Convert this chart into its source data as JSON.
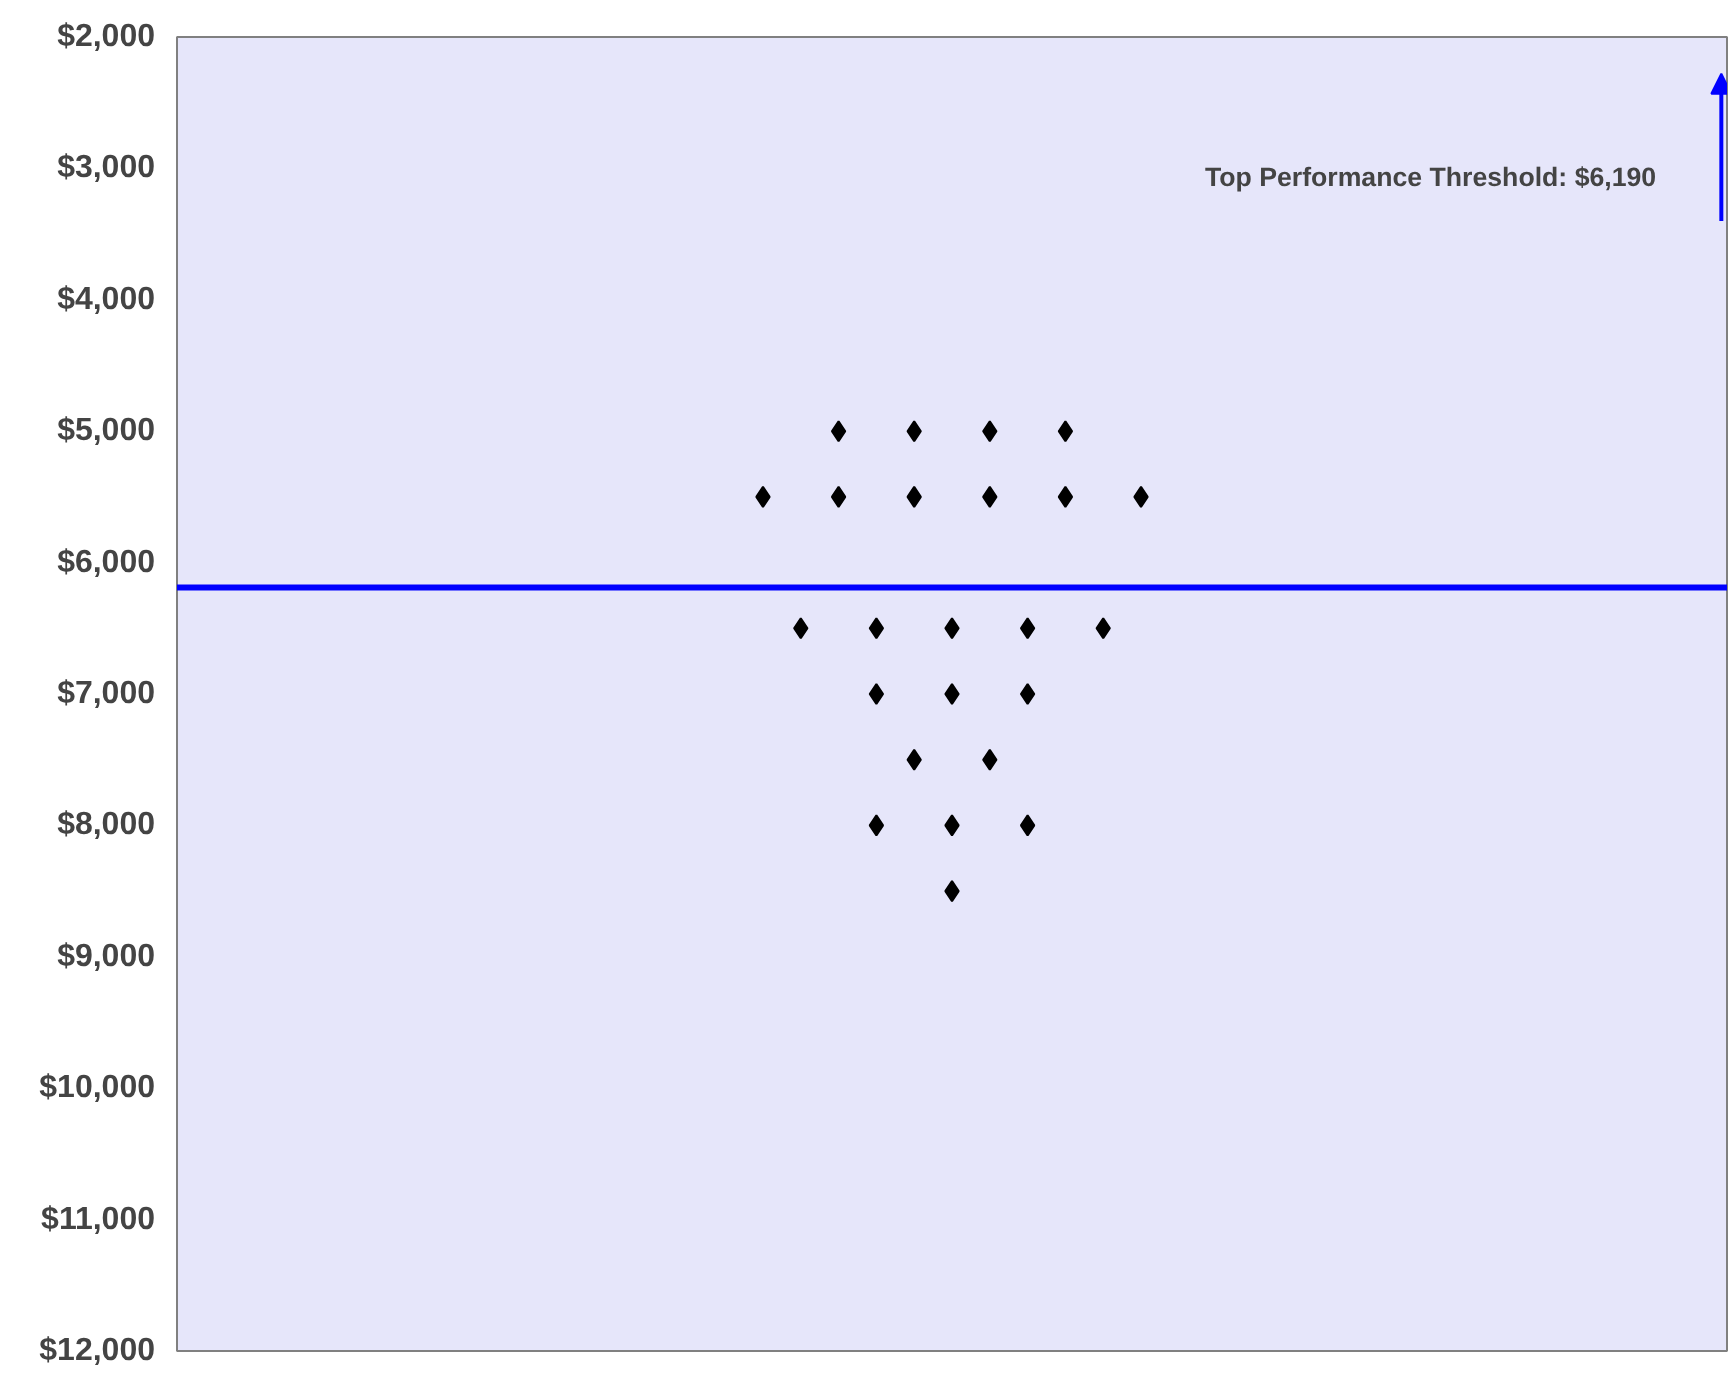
{
  "chart_data": {
    "type": "scatter",
    "marker": "diamond",
    "grid": false,
    "tick_labels": "y",
    "ylim": [
      12000,
      2000
    ],
    "yticks": [
      {
        "value": 2000,
        "label": "$2,000"
      },
      {
        "value": 3000,
        "label": "$3,000"
      },
      {
        "value": 4000,
        "label": "$4,000"
      },
      {
        "value": 5000,
        "label": "$5,000"
      },
      {
        "value": 6000,
        "label": "$6,000"
      },
      {
        "value": 7000,
        "label": "$7,000"
      },
      {
        "value": 8000,
        "label": "$8,000"
      },
      {
        "value": 9000,
        "label": "$9,000"
      },
      {
        "value": 10000,
        "label": "$10,000"
      },
      {
        "value": 11000,
        "label": "$11,000"
      },
      {
        "value": 12000,
        "label": "$12,000"
      }
    ],
    "categories": [
      null,
      null,
      null,
      null,
      null,
      null,
      null,
      null,
      null,
      null,
      null,
      null,
      null,
      null,
      null,
      null,
      null,
      null,
      null,
      null,
      null,
      null,
      null,
      null,
      null,
      null,
      null,
      null,
      null,
      null,
      null,
      null,
      null,
      null,
      null,
      null,
      null,
      null,
      null,
      null,
      null
    ],
    "series": [
      {
        "color": "#000000",
        "values": [
          null,
          null,
          null,
          null,
          null,
          null,
          null,
          null,
          null,
          null,
          null,
          null,
          null,
          null,
          null,
          5500,
          6500,
          5000,
          6500,
          5000,
          6500,
          5000,
          6500,
          5000,
          6500,
          5500,
          null,
          null,
          null,
          null,
          null,
          null,
          null,
          null,
          null,
          null,
          null,
          null,
          null,
          null,
          null
        ]
      },
      {
        "color": "#000000",
        "values": [
          null,
          null,
          null,
          null,
          null,
          null,
          null,
          null,
          null,
          null,
          null,
          null,
          null,
          null,
          null,
          null,
          null,
          5500,
          7000,
          5500,
          7000,
          5500,
          7000,
          5500,
          null,
          null,
          null,
          null,
          null,
          null,
          null,
          null,
          null,
          null,
          null,
          null,
          null,
          null,
          null,
          null,
          null
        ]
      },
      {
        "color": "#000000",
        "values": [
          null,
          null,
          null,
          null,
          null,
          null,
          null,
          null,
          null,
          null,
          null,
          null,
          null,
          null,
          null,
          null,
          null,
          null,
          8000,
          7500,
          8000,
          7500,
          8000,
          null,
          null,
          null,
          null,
          null,
          null,
          null,
          null,
          null,
          null,
          null,
          null,
          null,
          null,
          null,
          null,
          null,
          null
        ]
      },
      {
        "color": "#000000",
        "values": [
          null,
          null,
          null,
          null,
          null,
          null,
          null,
          null,
          null,
          null,
          null,
          null,
          null,
          null,
          null,
          null,
          null,
          null,
          null,
          null,
          8500,
          null,
          null,
          null,
          null,
          null,
          null,
          null,
          null,
          null,
          null,
          null,
          null,
          null,
          null,
          null,
          null,
          null,
          null,
          null,
          null
        ]
      }
    ],
    "annotations": [
      "Top Performance Threshold:   $6,190"
    ],
    "ref_lines": [
      {
        "axis": "y",
        "value": 6190,
        "color": "#0000ff",
        "line_style": "solid"
      }
    ]
  }
}
